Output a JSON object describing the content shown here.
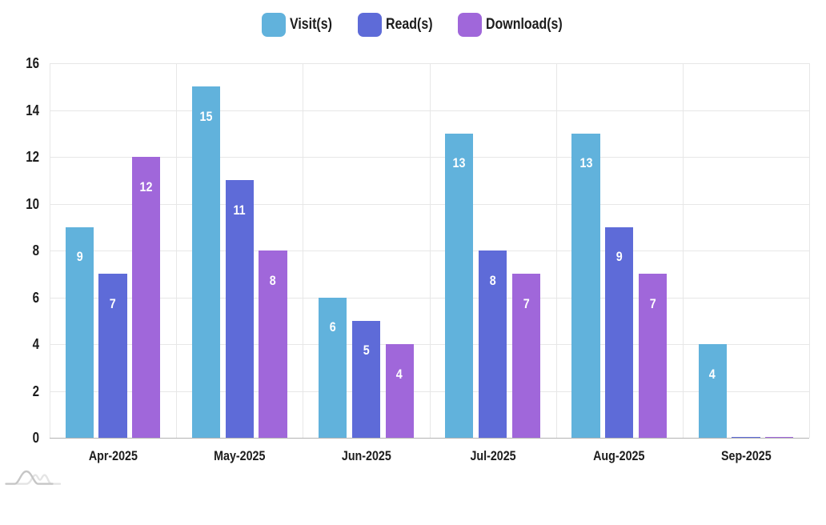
{
  "chart_data": {
    "type": "bar",
    "categories": [
      "Apr-2025",
      "May-2025",
      "Jun-2025",
      "Jul-2025",
      "Aug-2025",
      "Sep-2025"
    ],
    "series": [
      {
        "name": "Visit(s)",
        "color": "#61b2dc",
        "values": [
          9,
          15,
          6,
          13,
          13,
          4
        ]
      },
      {
        "name": "Read(s)",
        "color": "#5e6bd8",
        "values": [
          7,
          11,
          5,
          8,
          9,
          0
        ]
      },
      {
        "name": "Download(s)",
        "color": "#a067da",
        "values": [
          12,
          8,
          4,
          7,
          7,
          0
        ]
      }
    ],
    "title": "",
    "xlabel": "",
    "ylabel": "",
    "ylim": [
      0,
      16
    ],
    "yticks": [
      0,
      2,
      4,
      6,
      8,
      10,
      12,
      14,
      16
    ],
    "grid": true,
    "legend_position": "top",
    "data_labels": "inside-top",
    "data_label_color": "#ffffff"
  },
  "legend": {
    "items": [
      {
        "label": "Visit(s)",
        "color": "#61b2dc"
      },
      {
        "label": "Read(s)",
        "color": "#5e6bd8"
      },
      {
        "label": "Download(s)",
        "color": "#a067da"
      }
    ]
  },
  "colors": {
    "background": "#ffffff",
    "gridline": "#e7e7e7",
    "axis_line": "#b3b3b3",
    "tick_label": "#1c1c1c",
    "watermark_dark": "#c6c6c6",
    "watermark_light": "#e4e4e4"
  },
  "watermark": {
    "name": "amcharts-logo"
  }
}
